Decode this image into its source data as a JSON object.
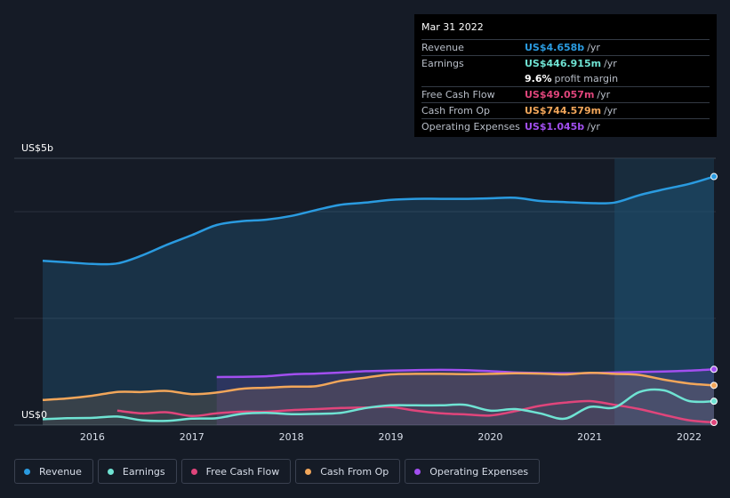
{
  "tooltip": {
    "date": "Mar 31 2022",
    "rows": [
      {
        "label": "Revenue",
        "value": "US$4.658b",
        "suffix": "/yr",
        "color": "#2a9be0"
      },
      {
        "label": "Earnings",
        "value": "US$446.915m",
        "suffix": "/yr",
        "color": "#6fe3d3"
      },
      {
        "label": "",
        "value": "9.6%",
        "suffix": "profit margin",
        "color": "#ffffff"
      },
      {
        "label": "Free Cash Flow",
        "value": "US$49.057m",
        "suffix": "/yr",
        "color": "#e0457b"
      },
      {
        "label": "Cash From Op",
        "value": "US$744.579m",
        "suffix": "/yr",
        "color": "#f2a65a"
      },
      {
        "label": "Operating Expenses",
        "value": "US$1.045b",
        "suffix": "/yr",
        "color": "#a24ff0"
      }
    ]
  },
  "legend": [
    {
      "label": "Revenue",
      "color": "#2a9be0"
    },
    {
      "label": "Earnings",
      "color": "#6fe3d3"
    },
    {
      "label": "Free Cash Flow",
      "color": "#e0457b"
    },
    {
      "label": "Cash From Op",
      "color": "#f2a65a"
    },
    {
      "label": "Operating Expenses",
      "color": "#a24ff0"
    }
  ],
  "chart_data": {
    "type": "area",
    "y_top_label": "US$5b",
    "y_bottom_label": "US$0",
    "ylim": [
      0,
      5000
    ],
    "xlim": [
      2015.5,
      2022.25
    ],
    "x_tick_labels": [
      "2016",
      "2017",
      "2018",
      "2019",
      "2020",
      "2021",
      "2022"
    ],
    "x_ticks": [
      2016,
      2017,
      2018,
      2019,
      2020,
      2021,
      2022
    ],
    "highlight_from": 2021.25,
    "grid": true,
    "legend_position": "bottom",
    "series": [
      {
        "name": "Revenue",
        "color": "#2a9be0",
        "fill": true,
        "x": [
          2015.5,
          2015.75,
          2016.0,
          2016.25,
          2016.5,
          2016.75,
          2017.0,
          2017.25,
          2017.5,
          2017.75,
          2018.0,
          2018.25,
          2018.5,
          2018.75,
          2019.0,
          2019.25,
          2019.5,
          2019.75,
          2020.0,
          2020.25,
          2020.5,
          2020.75,
          2021.0,
          2021.25,
          2021.5,
          2021.75,
          2022.0,
          2022.25
        ],
        "y": [
          3080,
          3050,
          3020,
          3030,
          3180,
          3380,
          3560,
          3750,
          3820,
          3850,
          3920,
          4030,
          4130,
          4170,
          4220,
          4240,
          4240,
          4240,
          4250,
          4260,
          4200,
          4180,
          4160,
          4170,
          4310,
          4420,
          4520,
          4658
        ]
      },
      {
        "name": "Operating Expenses",
        "color": "#a24ff0",
        "fill": true,
        "x": [
          2017.25,
          2017.5,
          2017.75,
          2018.0,
          2018.25,
          2018.5,
          2018.75,
          2019.0,
          2019.25,
          2019.5,
          2019.75,
          2020.0,
          2020.25,
          2020.5,
          2020.75,
          2021.0,
          2021.25,
          2021.5,
          2021.75,
          2022.0,
          2022.25
        ],
        "y": [
          900,
          905,
          915,
          950,
          965,
          985,
          1010,
          1020,
          1030,
          1035,
          1030,
          1010,
          985,
          975,
          970,
          975,
          985,
          995,
          1005,
          1020,
          1045
        ]
      },
      {
        "name": "Cash From Op",
        "color": "#f2a65a",
        "fill": true,
        "x": [
          2015.5,
          2015.75,
          2016.0,
          2016.25,
          2016.5,
          2016.75,
          2017.0,
          2017.25,
          2017.5,
          2017.75,
          2018.0,
          2018.25,
          2018.5,
          2018.75,
          2019.0,
          2019.25,
          2019.5,
          2019.75,
          2020.0,
          2020.25,
          2020.5,
          2020.75,
          2021.0,
          2021.25,
          2021.5,
          2021.75,
          2022.0,
          2022.25
        ],
        "y": [
          470,
          500,
          550,
          620,
          620,
          640,
          580,
          610,
          680,
          700,
          720,
          730,
          830,
          890,
          950,
          960,
          960,
          955,
          960,
          970,
          965,
          950,
          980,
          960,
          940,
          850,
          780,
          744.579
        ]
      },
      {
        "name": "Free Cash Flow",
        "color": "#e0457b",
        "fill": false,
        "x": [
          2016.25,
          2016.5,
          2016.75,
          2017.0,
          2017.25,
          2017.5,
          2017.75,
          2018.0,
          2018.25,
          2018.5,
          2018.75,
          2019.0,
          2019.25,
          2019.5,
          2019.75,
          2020.0,
          2020.25,
          2020.5,
          2020.75,
          2021.0,
          2021.25,
          2021.5,
          2021.75,
          2022.0,
          2022.25
        ],
        "y": [
          270,
          220,
          240,
          170,
          220,
          250,
          250,
          280,
          300,
          320,
          330,
          340,
          270,
          220,
          200,
          180,
          260,
          360,
          420,
          450,
          380,
          300,
          190,
          90,
          49.057
        ]
      },
      {
        "name": "Earnings",
        "color": "#6fe3d3",
        "fill": false,
        "x": [
          2015.5,
          2015.75,
          2016.0,
          2016.25,
          2016.5,
          2016.75,
          2017.0,
          2017.25,
          2017.5,
          2017.75,
          2018.0,
          2018.25,
          2018.5,
          2018.75,
          2019.0,
          2019.25,
          2019.5,
          2019.75,
          2020.0,
          2020.25,
          2020.5,
          2020.75,
          2021.0,
          2021.25,
          2021.5,
          2021.75,
          2022.0,
          2022.25
        ],
        "y": [
          110,
          130,
          135,
          160,
          90,
          80,
          120,
          130,
          210,
          230,
          205,
          210,
          230,
          320,
          370,
          370,
          370,
          380,
          270,
          300,
          220,
          120,
          340,
          330,
          620,
          650,
          450,
          446.915
        ]
      }
    ]
  }
}
